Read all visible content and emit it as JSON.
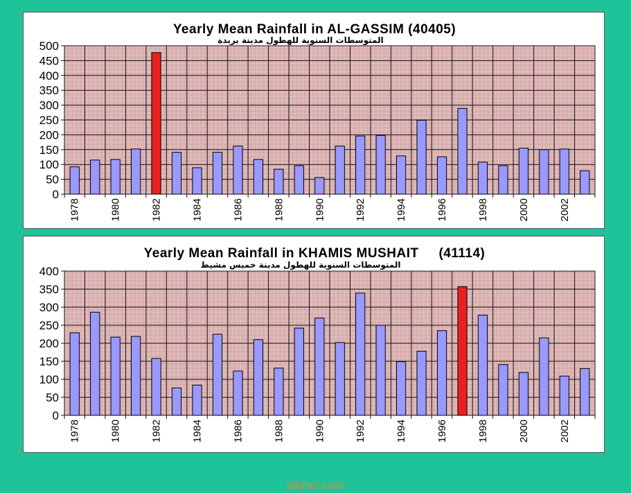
{
  "chart_data": [
    {
      "type": "bar",
      "title": "Yearly Mean Rainfall in AL-GASSIM (40405)",
      "subtitle": "المتوسطات السنوية للهطول مدينة بريدة",
      "x": [
        1978,
        1979,
        1980,
        1981,
        1982,
        1983,
        1984,
        1985,
        1986,
        1987,
        1988,
        1989,
        1990,
        1991,
        1992,
        1993,
        1994,
        1995,
        1996,
        1997,
        1998,
        1999,
        2000,
        2001,
        2002,
        2003
      ],
      "x_tick_labels": [
        "1978",
        "1980",
        "1982",
        "1984",
        "1986",
        "1988",
        "1990",
        "1992",
        "1994",
        "1996",
        "1998",
        "2000",
        "2002"
      ],
      "values": [
        92,
        115,
        117,
        152,
        477,
        141,
        89,
        141,
        162,
        117,
        84,
        96,
        56,
        162,
        196,
        198,
        129,
        249,
        126,
        289,
        108,
        96,
        155,
        150,
        152,
        79
      ],
      "highlight_index": 4,
      "ylim": [
        0,
        500
      ],
      "y_ticks": [
        0,
        50,
        100,
        150,
        200,
        250,
        300,
        350,
        400,
        450,
        500
      ],
      "xlabel": "",
      "ylabel": "",
      "grid": true,
      "bar_color": "#9999ff",
      "highlight_color": "#e8201f",
      "plot_background": "#dcb3b3"
    },
    {
      "type": "bar",
      "title": "Yearly Mean Rainfall in KHAMIS MUSHAIT     (41114)",
      "subtitle": "المتوسطات السنوية للهطول مدينة خميس مشيط",
      "x": [
        1978,
        1979,
        1980,
        1981,
        1982,
        1983,
        1984,
        1985,
        1986,
        1987,
        1988,
        1989,
        1990,
        1991,
        1992,
        1993,
        1994,
        1995,
        1996,
        1997,
        1998,
        1999,
        2000,
        2001,
        2002,
        2003
      ],
      "x_tick_labels": [
        "1978",
        "1980",
        "1982",
        "1984",
        "1986",
        "1988",
        "1990",
        "1992",
        "1994",
        "1996",
        "1998",
        "2000",
        "2002"
      ],
      "values": [
        229,
        286,
        217,
        219,
        158,
        76,
        84,
        225,
        123,
        210,
        131,
        242,
        270,
        202,
        339,
        250,
        149,
        178,
        235,
        357,
        278,
        141,
        119,
        215,
        109,
        130
      ],
      "highlight_index": 19,
      "ylim": [
        0,
        400
      ],
      "y_ticks": [
        0,
        50,
        100,
        150,
        200,
        250,
        300,
        350,
        400
      ],
      "xlabel": "",
      "ylabel": "",
      "grid": true,
      "bar_color": "#9999ff",
      "highlight_color": "#e8201f",
      "plot_background": "#dcb3b3"
    }
  ],
  "watermark": "albrari.com"
}
